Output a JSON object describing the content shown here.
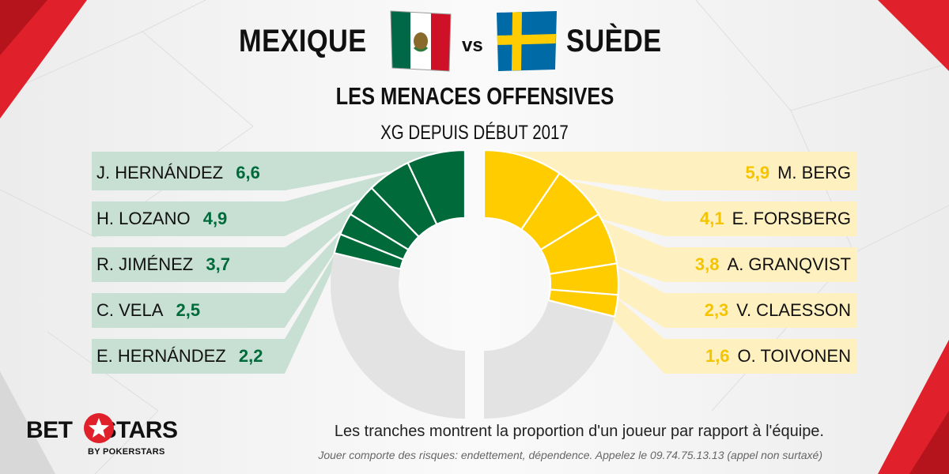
{
  "header": {
    "team_left": "MEXIQUE",
    "vs": "vs",
    "team_right": "SUÈDE",
    "heading": "LES MENACES OFFENSIVES",
    "subheading": "XG DEPUIS DÉBUT 2017"
  },
  "colors": {
    "mexico": "#006a3a",
    "mexico_panel": "#c8dfd4",
    "sweden": "#ffcc00",
    "sweden_panel": "#fff0c0",
    "remainder": "#e3e3e3",
    "accent": "#e0202a"
  },
  "chart_data": {
    "type": "pie",
    "title": "LES MENACES OFFENSIVES",
    "subtitle": "XG DEPUIS DÉBUT 2017",
    "series": [
      {
        "team": "MEXIQUE",
        "players": [
          {
            "name": "J. HERNÁNDEZ",
            "value": 6.6,
            "label": "6,6"
          },
          {
            "name": "H. LOZANO",
            "value": 4.9,
            "label": "4,9"
          },
          {
            "name": "R. JIMÉNEZ",
            "value": 3.7,
            "label": "3,7"
          },
          {
            "name": "C. VELA",
            "value": 2.5,
            "label": "2,5"
          },
          {
            "name": "E. HERNÁNDEZ",
            "value": 2.2,
            "label": "2,2"
          }
        ],
        "share_of_half": [
          0.14,
          0.105,
          0.08,
          0.053,
          0.047
        ]
      },
      {
        "team": "SUÈDE",
        "players": [
          {
            "name": "M. BERG",
            "value": 5.9,
            "label": "5,9"
          },
          {
            "name": "E. FORSBERG",
            "value": 4.1,
            "label": "4,1"
          },
          {
            "name": "A. GRANQVIST",
            "value": 3.8,
            "label": "3,8"
          },
          {
            "name": "V. CLAESSON",
            "value": 2.3,
            "label": "2,3"
          },
          {
            "name": "O. TOIVONEN",
            "value": 1.6,
            "label": "1,6"
          }
        ],
        "share_of_half": [
          0.19,
          0.135,
          0.125,
          0.075,
          0.052
        ]
      }
    ]
  },
  "footer": {
    "note": "Les tranches montrent la proportion d'un joueur par rapport à l'équipe.",
    "disclaimer": "Jouer comporte des risques: endettement, dépendence. Appelez le 09.74.75.13.13 (appel non surtaxé)",
    "logo_main": "BET STARS",
    "logo_bet": "BET",
    "logo_stars": "STARS",
    "logo_sub": "BY POKERSTARS"
  }
}
